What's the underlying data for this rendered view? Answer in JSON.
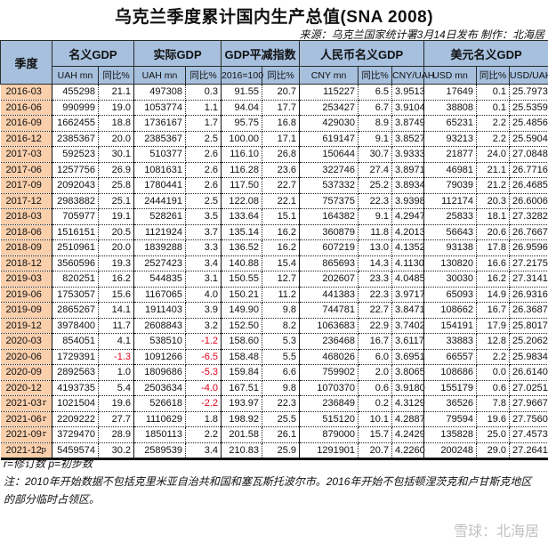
{
  "title": "乌克兰季度累计国内生产总值(SNA 2008)",
  "source": "来源：乌克兰国家统计署3月14日发布 制作：北海居",
  "header": {
    "quarter": "季度",
    "groups": [
      "名义GDP",
      "实际GDP",
      "GDP平减指数",
      "人民币名义GDP",
      "美元名义GDP"
    ],
    "sub": [
      "UAH mn",
      "同比%",
      "UAH mn",
      "同比%",
      "2016=100",
      "同比%",
      "CNY mn",
      "同比%",
      "CNY/UAH",
      "USD mn",
      "同比%",
      "USD/UAH"
    ]
  },
  "rows": [
    {
      "q": "2016-03",
      "f": "",
      "v": [
        "455298",
        "21.1",
        "497308",
        "0.3",
        "91.55",
        "20.7",
        "115227",
        "6.5",
        "3.9513",
        "17649",
        "0.1",
        "25.7973"
      ]
    },
    {
      "q": "2016-06",
      "f": "",
      "v": [
        "990999",
        "19.0",
        "1053774",
        "1.1",
        "94.04",
        "17.7",
        "253427",
        "6.7",
        "3.9104",
        "38808",
        "0.1",
        "25.5359"
      ]
    },
    {
      "q": "2016-09",
      "f": "",
      "v": [
        "1662455",
        "18.8",
        "1736167",
        "1.7",
        "95.75",
        "16.8",
        "429030",
        "8.9",
        "3.8749",
        "65231",
        "2.2",
        "25.4856"
      ]
    },
    {
      "q": "2016-12",
      "f": "",
      "v": [
        "2385367",
        "20.0",
        "2385367",
        "2.5",
        "100.00",
        "17.1",
        "619147",
        "9.1",
        "3.8527",
        "93213",
        "2.2",
        "25.5904"
      ]
    },
    {
      "q": "2017-03",
      "f": "",
      "v": [
        "592523",
        "30.1",
        "510377",
        "2.6",
        "116.10",
        "26.8",
        "150644",
        "30.7",
        "3.9333",
        "21877",
        "24.0",
        "27.0848"
      ]
    },
    {
      "q": "2017-06",
      "f": "",
      "v": [
        "1257756",
        "26.9",
        "1081631",
        "2.6",
        "116.28",
        "23.6",
        "322746",
        "27.4",
        "3.8971",
        "46981",
        "21.1",
        "26.7716"
      ]
    },
    {
      "q": "2017-09",
      "f": "",
      "v": [
        "2092043",
        "25.8",
        "1780441",
        "2.6",
        "117.50",
        "22.7",
        "537332",
        "25.2",
        "3.8934",
        "79039",
        "21.2",
        "26.4685"
      ]
    },
    {
      "q": "2017-12",
      "f": "",
      "v": [
        "2983882",
        "25.1",
        "2444191",
        "2.5",
        "122.08",
        "22.1",
        "757375",
        "22.3",
        "3.9398",
        "112174",
        "20.3",
        "26.6006"
      ]
    },
    {
      "q": "2018-03",
      "f": "",
      "v": [
        "705977",
        "19.1",
        "528261",
        "3.5",
        "133.64",
        "15.1",
        "164382",
        "9.1",
        "4.2947",
        "25833",
        "18.1",
        "27.3282"
      ]
    },
    {
      "q": "2018-06",
      "f": "",
      "v": [
        "1516151",
        "20.5",
        "1121924",
        "3.7",
        "135.14",
        "16.2",
        "360879",
        "11.8",
        "4.2013",
        "56643",
        "20.6",
        "26.7667"
      ]
    },
    {
      "q": "2018-09",
      "f": "",
      "v": [
        "2510961",
        "20.0",
        "1839288",
        "3.3",
        "136.52",
        "16.2",
        "607219",
        "13.0",
        "4.1352",
        "93138",
        "17.8",
        "26.9596"
      ]
    },
    {
      "q": "2018-12",
      "f": "",
      "v": [
        "3560596",
        "19.3",
        "2527423",
        "3.4",
        "140.88",
        "15.4",
        "865693",
        "14.3",
        "4.1130",
        "130820",
        "16.6",
        "27.2175"
      ]
    },
    {
      "q": "2019-03",
      "f": "",
      "v": [
        "820251",
        "16.2",
        "544835",
        "3.1",
        "150.55",
        "12.7",
        "202607",
        "23.3",
        "4.0485",
        "30030",
        "16.2",
        "27.3141"
      ]
    },
    {
      "q": "2019-06",
      "f": "",
      "v": [
        "1753057",
        "15.6",
        "1167065",
        "4.0",
        "150.21",
        "11.2",
        "441383",
        "22.3",
        "3.9717",
        "65093",
        "14.9",
        "26.9316"
      ]
    },
    {
      "q": "2019-09",
      "f": "",
      "v": [
        "2865267",
        "14.1",
        "1911403",
        "3.9",
        "149.90",
        "9.8",
        "744781",
        "22.7",
        "3.8471",
        "108662",
        "16.7",
        "26.3687"
      ]
    },
    {
      "q": "2019-12",
      "f": "",
      "v": [
        "3978400",
        "11.7",
        "2608843",
        "3.2",
        "152.50",
        "8.2",
        "1063683",
        "22.9",
        "3.7402",
        "154191",
        "17.9",
        "25.8017"
      ]
    },
    {
      "q": "2020-03",
      "f": "",
      "v": [
        "854051",
        "4.1",
        "538510",
        "-1.2",
        "158.60",
        "5.3",
        "236468",
        "16.7",
        "3.6117",
        "33883",
        "12.8",
        "25.2062"
      ]
    },
    {
      "q": "2020-06",
      "f": "",
      "v": [
        "1729391",
        "-1.3",
        "1091266",
        "-6.5",
        "158.48",
        "5.5",
        "468026",
        "6.0",
        "3.6951",
        "66557",
        "2.2",
        "25.9834"
      ]
    },
    {
      "q": "2020-09",
      "f": "",
      "v": [
        "2892563",
        "1.0",
        "1809686",
        "-5.3",
        "159.84",
        "6.6",
        "759902",
        "2.0",
        "3.8065",
        "108686",
        "0.0",
        "26.6140"
      ]
    },
    {
      "q": "2020-12",
      "f": "",
      "v": [
        "4193735",
        "5.4",
        "2503634",
        "-4.0",
        "167.51",
        "9.8",
        "1070370",
        "0.6",
        "3.9180",
        "155179",
        "0.6",
        "27.0251"
      ]
    },
    {
      "q": "2021-03",
      "f": "r",
      "v": [
        "1021504",
        "19.6",
        "526618",
        "-2.2",
        "193.97",
        "22.3",
        "236849",
        "0.2",
        "4.3129",
        "36526",
        "7.8",
        "27.9667"
      ]
    },
    {
      "q": "2021-06",
      "f": "r",
      "v": [
        "2209222",
        "27.7",
        "1110629",
        "1.8",
        "198.92",
        "25.5",
        "515120",
        "10.1",
        "4.2887",
        "79594",
        "19.6",
        "27.7560"
      ]
    },
    {
      "q": "2021-09",
      "f": "r",
      "v": [
        "3729470",
        "28.9",
        "1850113",
        "2.2",
        "201.58",
        "26.1",
        "879000",
        "15.7",
        "4.2429",
        "135828",
        "25.0",
        "27.4573"
      ]
    },
    {
      "q": "2021-12",
      "f": "p",
      "v": [
        "5459574",
        "30.2",
        "2589539",
        "3.4",
        "210.83",
        "25.9",
        "1291901",
        "20.7",
        "4.2260",
        "200248",
        "29.0",
        "27.2641"
      ]
    }
  ],
  "notes": {
    "legend": "r=修订数 p=初步数",
    "note1": "注：2010年开始数据不包括克里米亚自治共和国和塞瓦斯托波尔市。2016年开始不包括顿涅茨克和卢甘斯克地区",
    "note2": "的部分临时占领区。"
  },
  "watermark": "雪球：北海居",
  "colors": {
    "header_bg": "#a6c0de",
    "quarter_bg": "#f9cfac",
    "negative": "#e0001a"
  }
}
